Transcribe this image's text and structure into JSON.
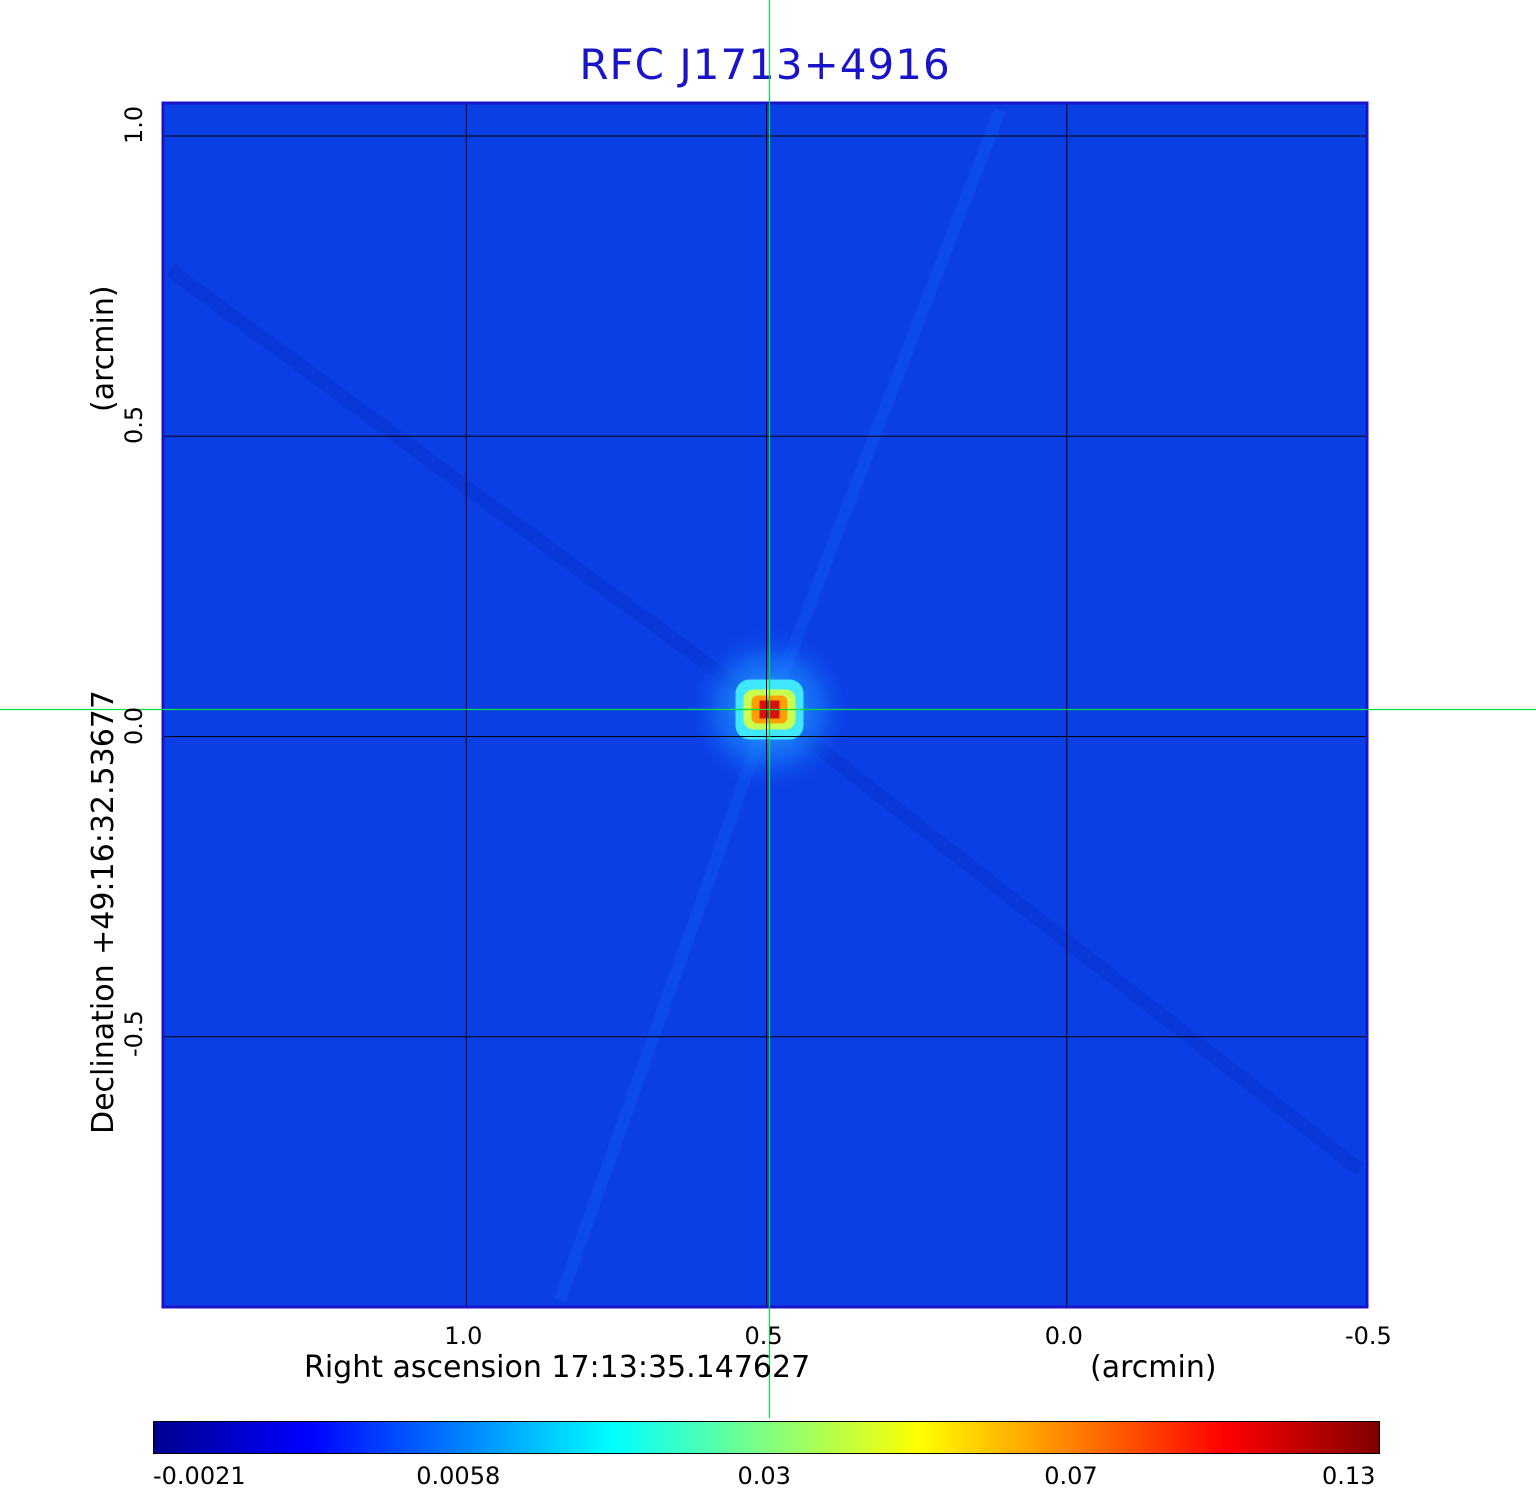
{
  "chart_data": {
    "type": "heatmap",
    "title": "RFC J1713+4916",
    "xlabel": "Right ascension  17:13:35.147627",
    "xunit": "(arcmin)",
    "ylabel": "Declination  +49:16:32.53677",
    "yunit": "(arcmin)",
    "x_ticks": [
      "1.0",
      "0.5",
      "0.0",
      "-0.5"
    ],
    "y_ticks": [
      "1.0",
      "0.5",
      "0.0",
      "-0.5"
    ],
    "x_tick_values": [
      1.0,
      0.5,
      0.0,
      -0.5
    ],
    "y_tick_values": [
      1.0,
      0.5,
      0.0,
      -0.5
    ],
    "xlim": [
      1.505,
      -0.5
    ],
    "ylim": [
      -0.95,
      1.055
    ],
    "grid": true,
    "crosshair": {
      "x": 0.495,
      "y": 0.045
    },
    "peak": {
      "x": 0.495,
      "y": 0.045,
      "value": 0.13
    },
    "colorbar": {
      "labels": [
        "-0.0021",
        "0.0058",
        "0.03",
        "0.07",
        "0.13"
      ],
      "colormap": [
        "#00008f",
        "#0000ff",
        "#0080ff",
        "#00ffff",
        "#80ff80",
        "#ffff00",
        "#ff8000",
        "#ff0000",
        "#800000"
      ]
    },
    "colors": {
      "background": "#0a3fe6",
      "frame": "#1a14c8",
      "crosshair": "#00e040",
      "grid": "#000000"
    }
  }
}
